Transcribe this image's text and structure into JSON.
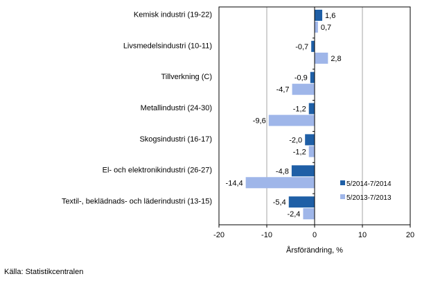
{
  "chart_data": {
    "type": "bar",
    "orientation": "horizontal",
    "categories": [
      "Kemisk industri (19-22)",
      "Livsmedelsindustri (10-11)",
      "Tillverkning (C)",
      "Metallindustri (24-30)",
      "Skogsindustri (16-17)",
      "El- och elektronikindustri (26-27)",
      "Textil-, beklädnads- och läderindustri (13-15)"
    ],
    "series": [
      {
        "name": "5/2014-7/2014",
        "color": "#1f5fa6",
        "values": [
          1.6,
          -0.7,
          -0.9,
          -1.2,
          -2.0,
          -4.8,
          -5.4
        ]
      },
      {
        "name": "5/2013-7/2013",
        "color": "#9fb6e9",
        "values": [
          0.7,
          2.8,
          -4.7,
          -9.6,
          -1.2,
          -14.4,
          -2.4
        ]
      }
    ],
    "data_labels": [
      [
        "1,6",
        "-0,7",
        "-0,9",
        "-1,2",
        "-2,0",
        "-4,8",
        "-5,4"
      ],
      [
        "0,7",
        "2,8",
        "-4,7",
        "-9,6",
        "-1,2",
        "-14,4",
        "-2,4"
      ]
    ],
    "xlabel": "Årsförändring, %",
    "xlim": [
      -20,
      20
    ],
    "xticks": [
      -20,
      -10,
      0,
      10,
      20
    ],
    "xtick_labels": [
      "-20",
      "-10",
      "0",
      "10",
      "20"
    ],
    "grid": true,
    "legend_position": "bottom-right"
  },
  "source": "Källa: Statistikcentralen"
}
